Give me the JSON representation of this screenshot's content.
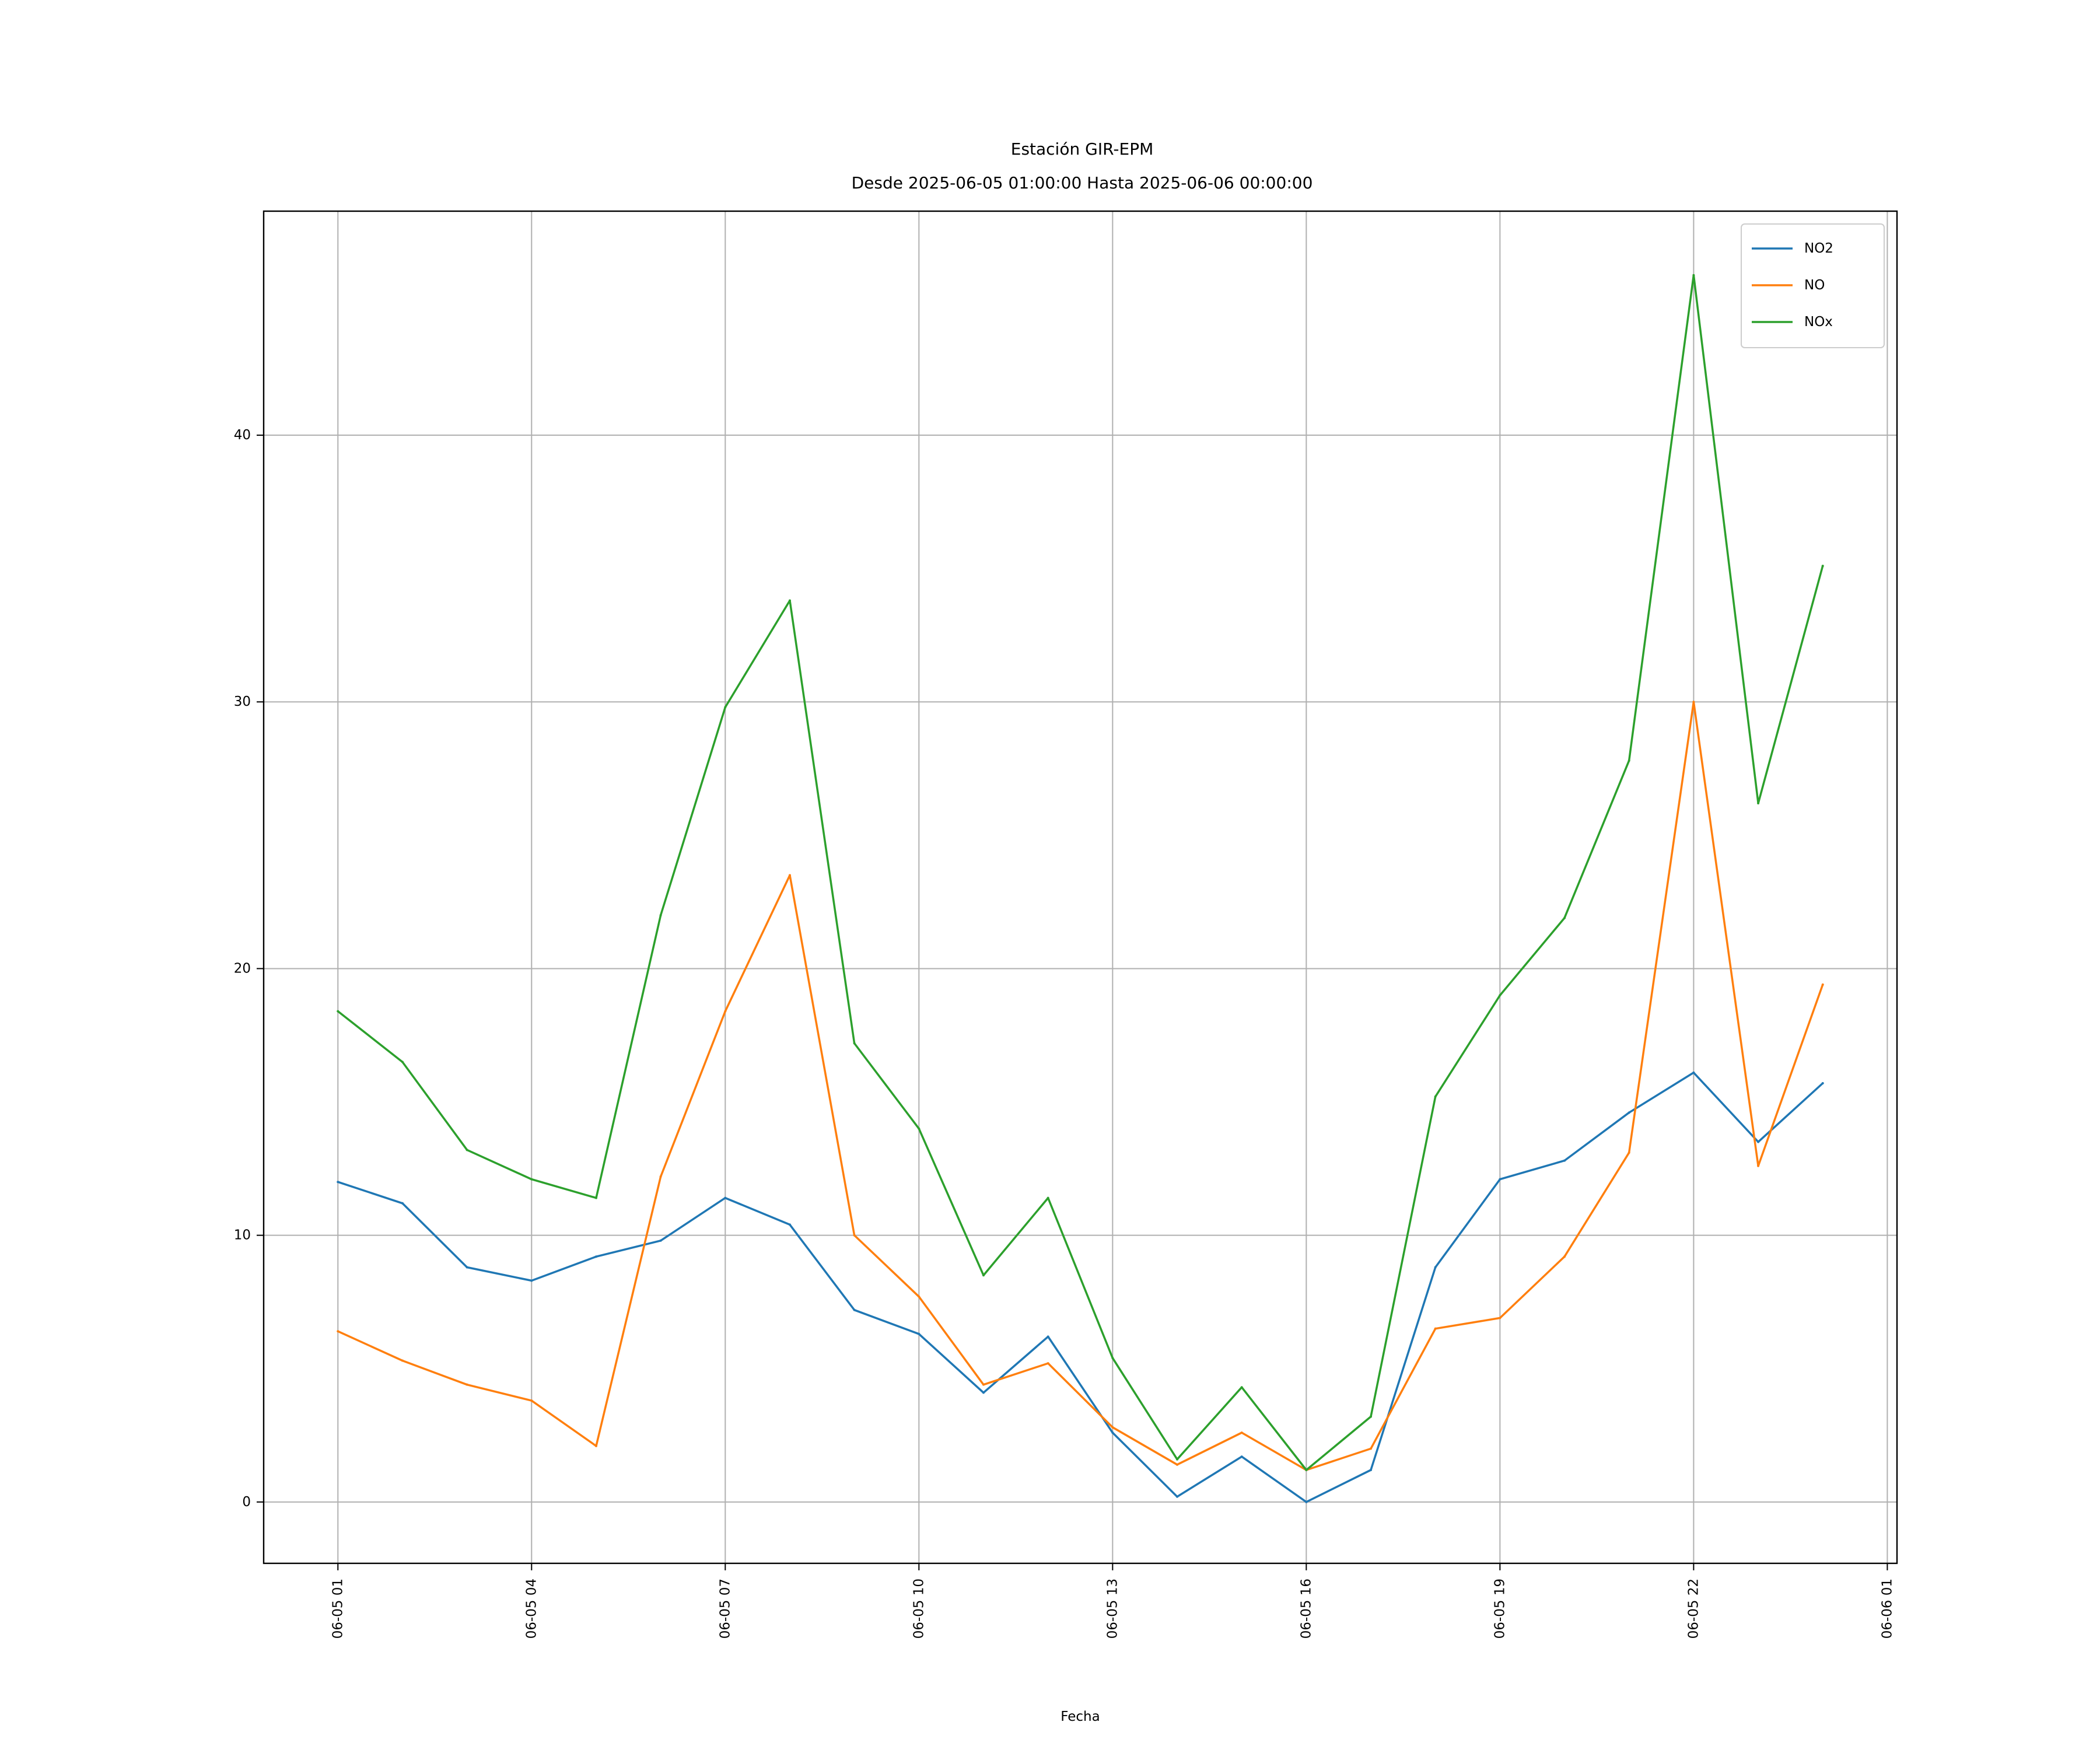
{
  "chart_data": {
    "type": "line",
    "title": "Estación GIR-EPM",
    "subtitle": "Desde 2025-06-05 01:00:00 Hasta 2025-06-06 00:00:00",
    "xlabel": "Fecha",
    "ylabel": "",
    "x": [
      "2025-06-05 01:00",
      "2025-06-05 02:00",
      "2025-06-05 03:00",
      "2025-06-05 04:00",
      "2025-06-05 05:00",
      "2025-06-05 06:00",
      "2025-06-05 07:00",
      "2025-06-05 08:00",
      "2025-06-05 09:00",
      "2025-06-05 10:00",
      "2025-06-05 11:00",
      "2025-06-05 12:00",
      "2025-06-05 13:00",
      "2025-06-05 14:00",
      "2025-06-05 15:00",
      "2025-06-05 16:00",
      "2025-06-05 17:00",
      "2025-06-05 18:00",
      "2025-06-05 19:00",
      "2025-06-05 20:00",
      "2025-06-05 21:00",
      "2025-06-05 22:00",
      "2025-06-05 23:00",
      "2025-06-06 00:00"
    ],
    "series": [
      {
        "name": "NO2",
        "color": "#1f77b4",
        "values": [
          12.0,
          11.2,
          8.8,
          8.3,
          9.2,
          9.8,
          11.4,
          10.4,
          7.2,
          6.3,
          4.1,
          6.2,
          2.6,
          0.2,
          1.7,
          0.0,
          1.2,
          8.8,
          12.1,
          12.8,
          14.6,
          16.1,
          13.5,
          15.7
        ]
      },
      {
        "name": "NO",
        "color": "#ff7f0e",
        "values": [
          6.4,
          5.3,
          4.4,
          3.8,
          2.1,
          12.2,
          18.4,
          23.5,
          10.0,
          7.7,
          4.4,
          5.2,
          2.8,
          1.4,
          2.6,
          1.2,
          2.0,
          6.5,
          6.9,
          9.2,
          13.1,
          30.0,
          12.6,
          19.4
        ]
      },
      {
        "name": "NOx",
        "color": "#2ca02c",
        "values": [
          18.4,
          16.5,
          13.2,
          12.1,
          11.4,
          22.0,
          29.8,
          33.8,
          17.2,
          14.0,
          8.5,
          11.4,
          5.4,
          1.6,
          4.3,
          1.2,
          3.2,
          15.2,
          19.0,
          21.9,
          27.8,
          46.0,
          26.2,
          35.1
        ]
      }
    ],
    "xlim": [
      "2025-06-04 23:51",
      "2025-06-06 01:09"
    ],
    "ylim": [
      -2.3,
      48.4
    ],
    "xticks": [
      "06-05 01",
      "06-05 04",
      "06-05 07",
      "06-05 10",
      "06-05 13",
      "06-05 16",
      "06-05 19",
      "06-05 22",
      "06-06 01"
    ],
    "xtick_values": [
      "2025-06-05 01:00",
      "2025-06-05 04:00",
      "2025-06-05 07:00",
      "2025-06-05 10:00",
      "2025-06-05 13:00",
      "2025-06-05 16:00",
      "2025-06-05 19:00",
      "2025-06-05 22:00",
      "2025-06-06 01:00"
    ],
    "yticks": [
      0,
      10,
      20,
      30,
      40
    ],
    "grid": true,
    "legend_position": "top-right"
  }
}
